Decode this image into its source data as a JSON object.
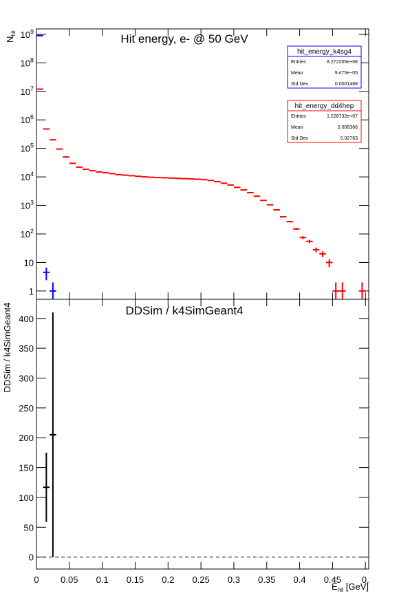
{
  "chart_data": [
    {
      "type": "errorbar",
      "title": "Hit energy,  e- @ 50 GeV",
      "ylabel": "N",
      "ylabel_sub": "hit",
      "log_y": true,
      "bin_width": 0.01,
      "xlim": [
        0,
        0.505
      ],
      "xticks": [
        0,
        0.05,
        0.1,
        0.15,
        0.2,
        0.25,
        0.3,
        0.35,
        0.4,
        0.45,
        0.5
      ],
      "ylim": [
        0.51,
        1550000000
      ],
      "yticks": [
        1,
        10,
        {
          "value": 100,
          "label": "10",
          "sup": "2"
        },
        {
          "value": 1000,
          "label": "10",
          "sup": "3"
        },
        {
          "value": 10000,
          "label": "10",
          "sup": "4"
        },
        {
          "value": 100000,
          "label": "10",
          "sup": "5"
        },
        {
          "value": 1000000,
          "label": "10",
          "sup": "6"
        },
        {
          "value": 10000000,
          "label": "10",
          "sup": "7"
        },
        {
          "value": 100000000,
          "label": "10",
          "sup": "8"
        },
        {
          "value": 1000000000,
          "label": "10",
          "sup": "9"
        }
      ],
      "series": [
        {
          "name": "hit_energy_k4sg4",
          "color": "#0000ff",
          "x": [
            0.005,
            0.015,
            0.025
          ],
          "values": [
            900000000,
            4.5,
            1
          ],
          "stats": [
            [
              "Entries",
              "8.272205e+08"
            ],
            [
              "Mean",
              "9.475e−05"
            ],
            [
              "Std Dev",
              "0.0001468"
            ]
          ]
        },
        {
          "name": "hit_energy_dd4hep",
          "color": "#ff0000",
          "x": [
            0.005,
            0.015,
            0.025,
            0.035,
            0.045,
            0.055,
            0.065,
            0.075,
            0.085,
            0.095,
            0.105,
            0.115,
            0.125,
            0.135,
            0.145,
            0.155,
            0.165,
            0.175,
            0.185,
            0.195,
            0.205,
            0.215,
            0.225,
            0.235,
            0.245,
            0.255,
            0.265,
            0.275,
            0.285,
            0.295,
            0.305,
            0.315,
            0.325,
            0.335,
            0.345,
            0.355,
            0.365,
            0.375,
            0.385,
            0.395,
            0.405,
            0.415,
            0.425,
            0.435,
            0.445,
            0.455,
            0.465,
            0.495
          ],
          "values": [
            12000000,
            480000,
            200000,
            95000,
            50000,
            30000,
            22000,
            18500,
            16500,
            15000,
            14000,
            13000,
            12000,
            11500,
            11000,
            10500,
            10000,
            9700,
            9500,
            9300,
            9100,
            8900,
            8700,
            8500,
            8300,
            8000,
            7500,
            6800,
            6000,
            5200,
            4300,
            3500,
            2800,
            2100,
            1500,
            1050,
            700,
            400,
            270,
            150,
            75,
            55,
            28,
            20,
            10,
            1,
            1,
            1
          ],
          "stats": [
            [
              "Entries",
              "1.228732e+07"
            ],
            [
              "Mean",
              "0.006366"
            ],
            [
              "Std Dev",
              "0.02763"
            ]
          ]
        }
      ]
    },
    {
      "type": "errorbar",
      "title": "DDSim / k4SimGeant4",
      "ylabel": "DDSim / k4SimGeant4",
      "xlabel": "E",
      "xlabel_sub": "hit",
      "xlabel_suffix": " [GeV]",
      "bin_width": 0.01,
      "hline": 0,
      "xlim": [
        0,
        0.505
      ],
      "xticks": [
        0,
        0.05,
        0.1,
        0.15,
        0.2,
        0.25,
        0.3,
        0.35,
        0.4,
        0.45,
        {
          "value": 0.5,
          "label": "0."
        }
      ],
      "ylim": [
        -20,
        432
      ],
      "yticks": [
        0,
        50,
        100,
        150,
        200,
        250,
        300,
        350,
        400
      ],
      "series": [
        {
          "color": "#000000",
          "x": [
            0.015,
            0.025
          ],
          "values": [
            117,
            205
          ],
          "errors": [
            58,
            205
          ]
        }
      ]
    }
  ]
}
